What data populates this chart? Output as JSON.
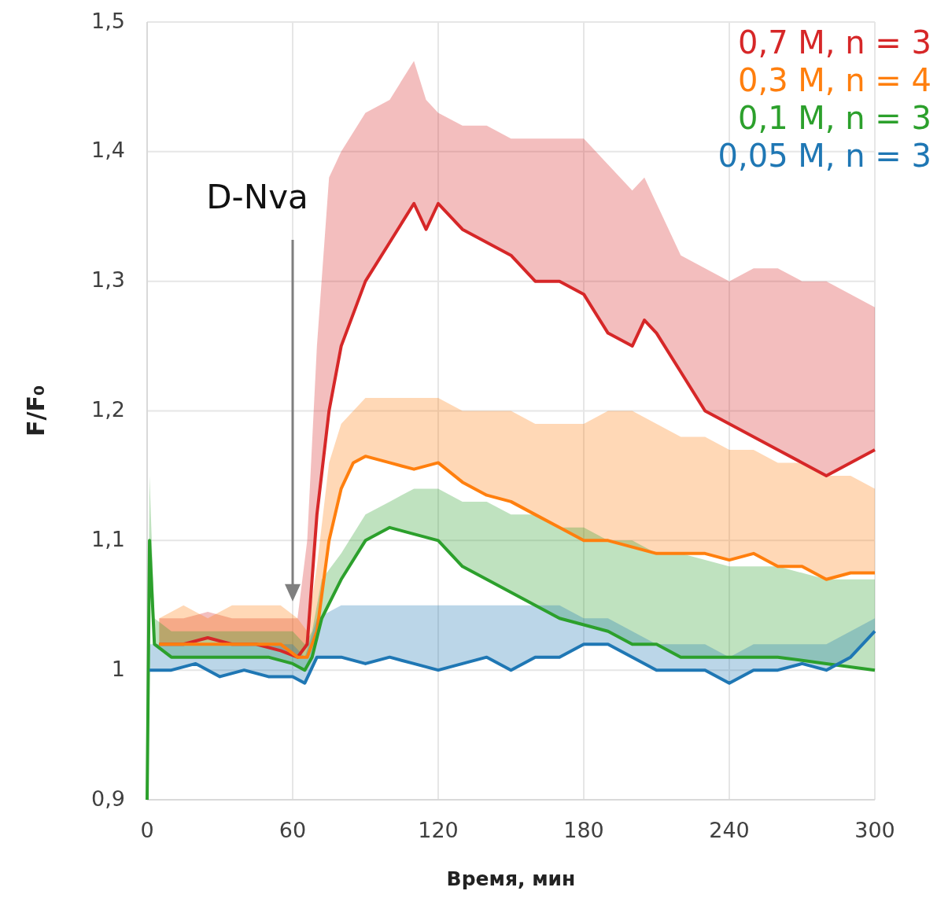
{
  "chart_data": {
    "type": "line",
    "xlabel": "Время, мин",
    "ylabel": "F/F₀",
    "xlim": [
      0,
      300
    ],
    "xticks": [
      0,
      60,
      120,
      180,
      240,
      300
    ],
    "ylim": [
      0.9,
      1.5
    ],
    "yticks": [
      {
        "value": 0.9,
        "label": "0,9"
      },
      1,
      {
        "value": 1.1,
        "label": "1,1"
      },
      {
        "value": 1.2,
        "label": "1,2"
      },
      {
        "value": 1.3,
        "label": "1,3"
      },
      {
        "value": 1.4,
        "label": "1,4"
      },
      {
        "value": 1.5,
        "label": "1,5"
      }
    ],
    "grid": true,
    "legend": "top right",
    "annotations": [
      "D-Nva"
    ],
    "series": [
      {
        "name": "0,7 M, n = 3",
        "color": "#d62728",
        "x": [
          5,
          15,
          25,
          35,
          45,
          55,
          62,
          66,
          70,
          75,
          80,
          90,
          100,
          110,
          115,
          120,
          130,
          140,
          150,
          160,
          170,
          180,
          190,
          200,
          205,
          210,
          220,
          230,
          240,
          250,
          260,
          270,
          280,
          290,
          300
        ],
        "values": [
          1.02,
          1.02,
          1.025,
          1.02,
          1.02,
          1.015,
          1.01,
          1.02,
          1.12,
          1.2,
          1.25,
          1.3,
          1.33,
          1.36,
          1.34,
          1.36,
          1.34,
          1.33,
          1.32,
          1.3,
          1.3,
          1.29,
          1.26,
          1.25,
          1.27,
          1.26,
          1.23,
          1.2,
          1.19,
          1.18,
          1.17,
          1.16,
          1.15,
          1.16,
          1.17
        ],
        "lower": [
          1.02,
          1.02,
          1.025,
          1.02,
          1.02,
          1.015,
          1.01,
          1.02,
          1.12,
          1.2,
          1.25,
          1.3,
          1.33,
          1.36,
          1.34,
          1.36,
          1.34,
          1.33,
          1.32,
          1.3,
          1.3,
          1.29,
          1.26,
          1.25,
          1.27,
          1.26,
          1.23,
          1.2,
          1.19,
          1.18,
          1.17,
          1.16,
          1.15,
          1.16,
          1.17
        ],
        "upper": [
          1.04,
          1.04,
          1.045,
          1.04,
          1.04,
          1.04,
          1.04,
          1.1,
          1.25,
          1.38,
          1.4,
          1.43,
          1.44,
          1.47,
          1.44,
          1.43,
          1.42,
          1.42,
          1.41,
          1.41,
          1.41,
          1.41,
          1.39,
          1.37,
          1.38,
          1.36,
          1.32,
          1.31,
          1.3,
          1.31,
          1.31,
          1.3,
          1.3,
          1.29,
          1.28
        ]
      },
      {
        "name": "0,3 M, n = 4",
        "color": "#ff7f0e",
        "x": [
          5,
          15,
          25,
          35,
          45,
          55,
          62,
          66,
          70,
          75,
          80,
          85,
          90,
          100,
          110,
          120,
          130,
          140,
          150,
          160,
          170,
          180,
          190,
          200,
          210,
          220,
          230,
          240,
          250,
          260,
          270,
          280,
          290,
          300
        ],
        "values": [
          1.02,
          1.02,
          1.02,
          1.02,
          1.02,
          1.02,
          1.01,
          1.01,
          1.03,
          1.1,
          1.14,
          1.16,
          1.165,
          1.16,
          1.155,
          1.16,
          1.145,
          1.135,
          1.13,
          1.12,
          1.11,
          1.1,
          1.1,
          1.095,
          1.09,
          1.09,
          1.09,
          1.085,
          1.09,
          1.08,
          1.08,
          1.07,
          1.075,
          1.075
        ],
        "lower": [
          1.02,
          1.02,
          1.02,
          1.02,
          1.02,
          1.02,
          1.01,
          1.01,
          1.03,
          1.1,
          1.14,
          1.16,
          1.165,
          1.16,
          1.155,
          1.16,
          1.145,
          1.135,
          1.13,
          1.12,
          1.11,
          1.1,
          1.1,
          1.095,
          1.09,
          1.09,
          1.09,
          1.085,
          1.09,
          1.08,
          1.08,
          1.07,
          1.075,
          1.075
        ],
        "upper": [
          1.04,
          1.05,
          1.04,
          1.05,
          1.05,
          1.05,
          1.04,
          1.03,
          1.08,
          1.16,
          1.19,
          1.2,
          1.21,
          1.21,
          1.21,
          1.21,
          1.2,
          1.2,
          1.2,
          1.19,
          1.19,
          1.19,
          1.2,
          1.2,
          1.19,
          1.18,
          1.18,
          1.17,
          1.17,
          1.16,
          1.16,
          1.15,
          1.15,
          1.14
        ]
      },
      {
        "name": "0,1 M, n = 3",
        "color": "#2ca02c",
        "x": [
          0,
          1,
          3,
          10,
          20,
          30,
          40,
          50,
          60,
          65,
          68,
          72,
          80,
          90,
          100,
          110,
          120,
          130,
          140,
          150,
          160,
          170,
          180,
          190,
          200,
          210,
          220,
          240,
          260,
          280,
          300
        ],
        "values": [
          0.9,
          1.1,
          1.02,
          1.01,
          1.01,
          1.01,
          1.01,
          1.01,
          1.005,
          1.0,
          1.01,
          1.04,
          1.07,
          1.1,
          1.11,
          1.105,
          1.1,
          1.08,
          1.07,
          1.06,
          1.05,
          1.04,
          1.035,
          1.03,
          1.02,
          1.02,
          1.01,
          1.01,
          1.01,
          1.005,
          1.0
        ],
        "lower": [
          0.9,
          1.1,
          1.02,
          1.01,
          1.01,
          1.01,
          1.01,
          1.01,
          1.005,
          1.0,
          1.01,
          1.04,
          1.07,
          1.1,
          1.11,
          1.105,
          1.1,
          1.08,
          1.07,
          1.06,
          1.05,
          1.04,
          1.035,
          1.03,
          1.02,
          1.02,
          1.01,
          1.01,
          1.01,
          1.005,
          1.0
        ],
        "upper": [
          0.9,
          1.15,
          1.04,
          1.03,
          1.03,
          1.03,
          1.03,
          1.03,
          1.03,
          1.02,
          1.03,
          1.07,
          1.09,
          1.12,
          1.13,
          1.14,
          1.14,
          1.13,
          1.13,
          1.12,
          1.12,
          1.11,
          1.11,
          1.1,
          1.1,
          1.09,
          1.09,
          1.08,
          1.08,
          1.07,
          1.07
        ]
      },
      {
        "name": "0,05 M, n = 3",
        "color": "#1f77b4",
        "x": [
          1,
          10,
          20,
          30,
          40,
          50,
          60,
          65,
          70,
          80,
          90,
          100,
          110,
          120,
          130,
          140,
          150,
          160,
          170,
          180,
          190,
          200,
          210,
          220,
          230,
          240,
          250,
          260,
          270,
          280,
          290,
          300
        ],
        "values": [
          1.0,
          1.0,
          1.005,
          0.995,
          1.0,
          0.995,
          0.995,
          0.99,
          1.01,
          1.01,
          1.005,
          1.01,
          1.005,
          1.0,
          1.005,
          1.01,
          1.0,
          1.01,
          1.01,
          1.02,
          1.02,
          1.01,
          1.0,
          1.0,
          1.0,
          0.99,
          1.0,
          1.0,
          1.005,
          1.0,
          1.01,
          1.03
        ],
        "lower": [
          1.0,
          1.0,
          1.005,
          0.995,
          1.0,
          0.995,
          0.995,
          0.99,
          1.01,
          1.01,
          1.005,
          1.01,
          1.005,
          1.0,
          1.005,
          1.01,
          1.0,
          1.01,
          1.01,
          1.02,
          1.02,
          1.01,
          1.0,
          1.0,
          1.0,
          0.99,
          1.0,
          1.0,
          1.005,
          1.0,
          1.01,
          1.03
        ],
        "upper": [
          1.02,
          1.02,
          1.02,
          1.02,
          1.02,
          1.02,
          1.02,
          1.01,
          1.04,
          1.05,
          1.05,
          1.05,
          1.05,
          1.05,
          1.05,
          1.05,
          1.05,
          1.05,
          1.05,
          1.04,
          1.04,
          1.03,
          1.02,
          1.02,
          1.02,
          1.01,
          1.02,
          1.02,
          1.02,
          1.02,
          1.03,
          1.04
        ]
      }
    ]
  }
}
